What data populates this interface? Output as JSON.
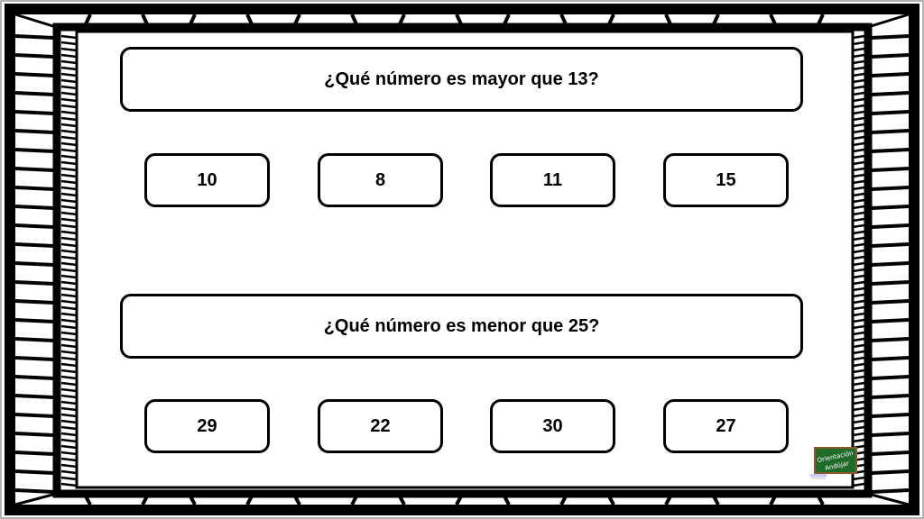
{
  "questions": [
    {
      "text": "¿Qué número es mayor que 13?",
      "options": [
        "10",
        "8",
        "11",
        "15"
      ]
    },
    {
      "text": "¿Qué número es menor que 25?",
      "options": [
        "29",
        "22",
        "30",
        "27"
      ]
    }
  ],
  "logo": {
    "line1": "Orientación",
    "line2": "Andújar",
    "board_color": "#1f6b2a"
  }
}
